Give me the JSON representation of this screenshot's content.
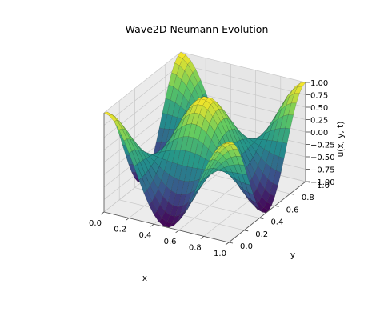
{
  "chart_data": {
    "type": "surface3d",
    "title": "Wave2D Neumann Evolution",
    "xlabel": "x",
    "ylabel": "y",
    "zlabel": "u(x, y, t)",
    "xlim": [
      0.0,
      1.0
    ],
    "ylim": [
      0.0,
      1.0
    ],
    "zlim": [
      -1.0,
      1.0
    ],
    "x_ticks": [
      "0.0",
      "0.2",
      "0.4",
      "0.6",
      "0.8",
      "1.0"
    ],
    "y_ticks": [
      "0.0",
      "0.2",
      "0.4",
      "0.6",
      "0.8",
      "1.0"
    ],
    "z_ticks": [
      "−1.00",
      "−0.75",
      "−0.50",
      "−0.25",
      "0.00",
      "0.25",
      "0.50",
      "0.75",
      "1.00"
    ],
    "surface": {
      "function": "cos(2πx)·cos(2πy)",
      "x_range": [
        0.0,
        1.0
      ],
      "y_range": [
        0.0,
        1.0
      ],
      "grid_size": 25,
      "z_min": -1.0,
      "z_max": 1.0
    },
    "colormap": [
      "#440154",
      "#3b528b",
      "#21918c",
      "#5ec962",
      "#fde725"
    ],
    "grid": true
  }
}
